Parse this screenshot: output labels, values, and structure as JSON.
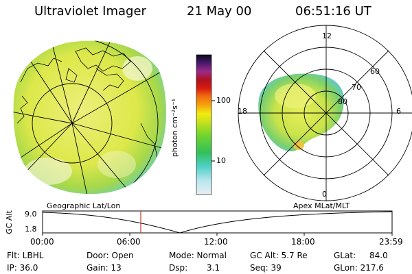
{
  "header": {
    "title": "Ultraviolet Imager",
    "date": "21 May 00",
    "time": "06:51:16 UT"
  },
  "colorbar": {
    "unit_label": "photon cm⁻²s⁻¹",
    "tick_100": "100",
    "tick_10": "10"
  },
  "polar_plot": {
    "mlt_labels": {
      "top": "12",
      "bottom": "0",
      "left": "18",
      "right": "6"
    },
    "lat_labels": [
      "60",
      "70",
      "80"
    ]
  },
  "timeline": {
    "left_label": "Geographic Lat/Lon",
    "right_label": "Apex MLat/MLT",
    "axis_label": "GC Alt",
    "ytick_top": "9.0",
    "ytick_bottom": "1.8",
    "xticks": [
      "00:00",
      "06:00",
      "12:00",
      "18:00",
      "23:59"
    ],
    "marker_color": "#c0392b"
  },
  "status": {
    "flt": "Flt: LBHL",
    "ip": "IP: 36.0",
    "door": "Door: Open",
    "gain": "Gain: 13",
    "mode": "Mode: Normal",
    "dsp": "Dsp:",
    "dsp_val": "3.1",
    "gc_alt": "GC Alt: 5.7 Re",
    "seq": "Seq: 39",
    "glat": "GLat:",
    "glat_val": "84.0",
    "glon": "GLon: 217.6"
  }
}
